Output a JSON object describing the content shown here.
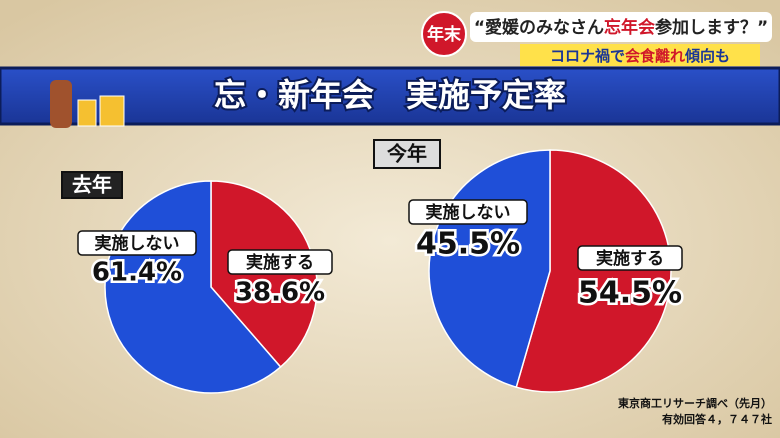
{
  "header": {
    "badge": "年末",
    "headline": [
      "“愛媛のみなさん",
      "忘年会",
      "参加します？”"
    ],
    "subline": [
      "コロナ禍で",
      "会食離れ",
      "傾向も"
    ]
  },
  "title": "忘・新年会　実施予定率",
  "chart_data": [
    {
      "type": "pie",
      "title": "去年",
      "categories": [
        "実施する",
        "実施しない"
      ],
      "values": [
        38.6,
        61.4
      ],
      "value_labels": [
        "38.6%",
        "61.4%"
      ],
      "colors": [
        "#d0172a",
        "#1f4fd8"
      ]
    },
    {
      "type": "pie",
      "title": "今年",
      "categories": [
        "実施する",
        "実施しない"
      ],
      "values": [
        54.5,
        45.5
      ],
      "value_labels": [
        "54.5%",
        "45.5%"
      ],
      "colors": [
        "#d0172a",
        "#1f4fd8"
      ]
    }
  ],
  "source": [
    "東京商工リサーチ調べ（先月）",
    "有効回答４，７４７社"
  ]
}
